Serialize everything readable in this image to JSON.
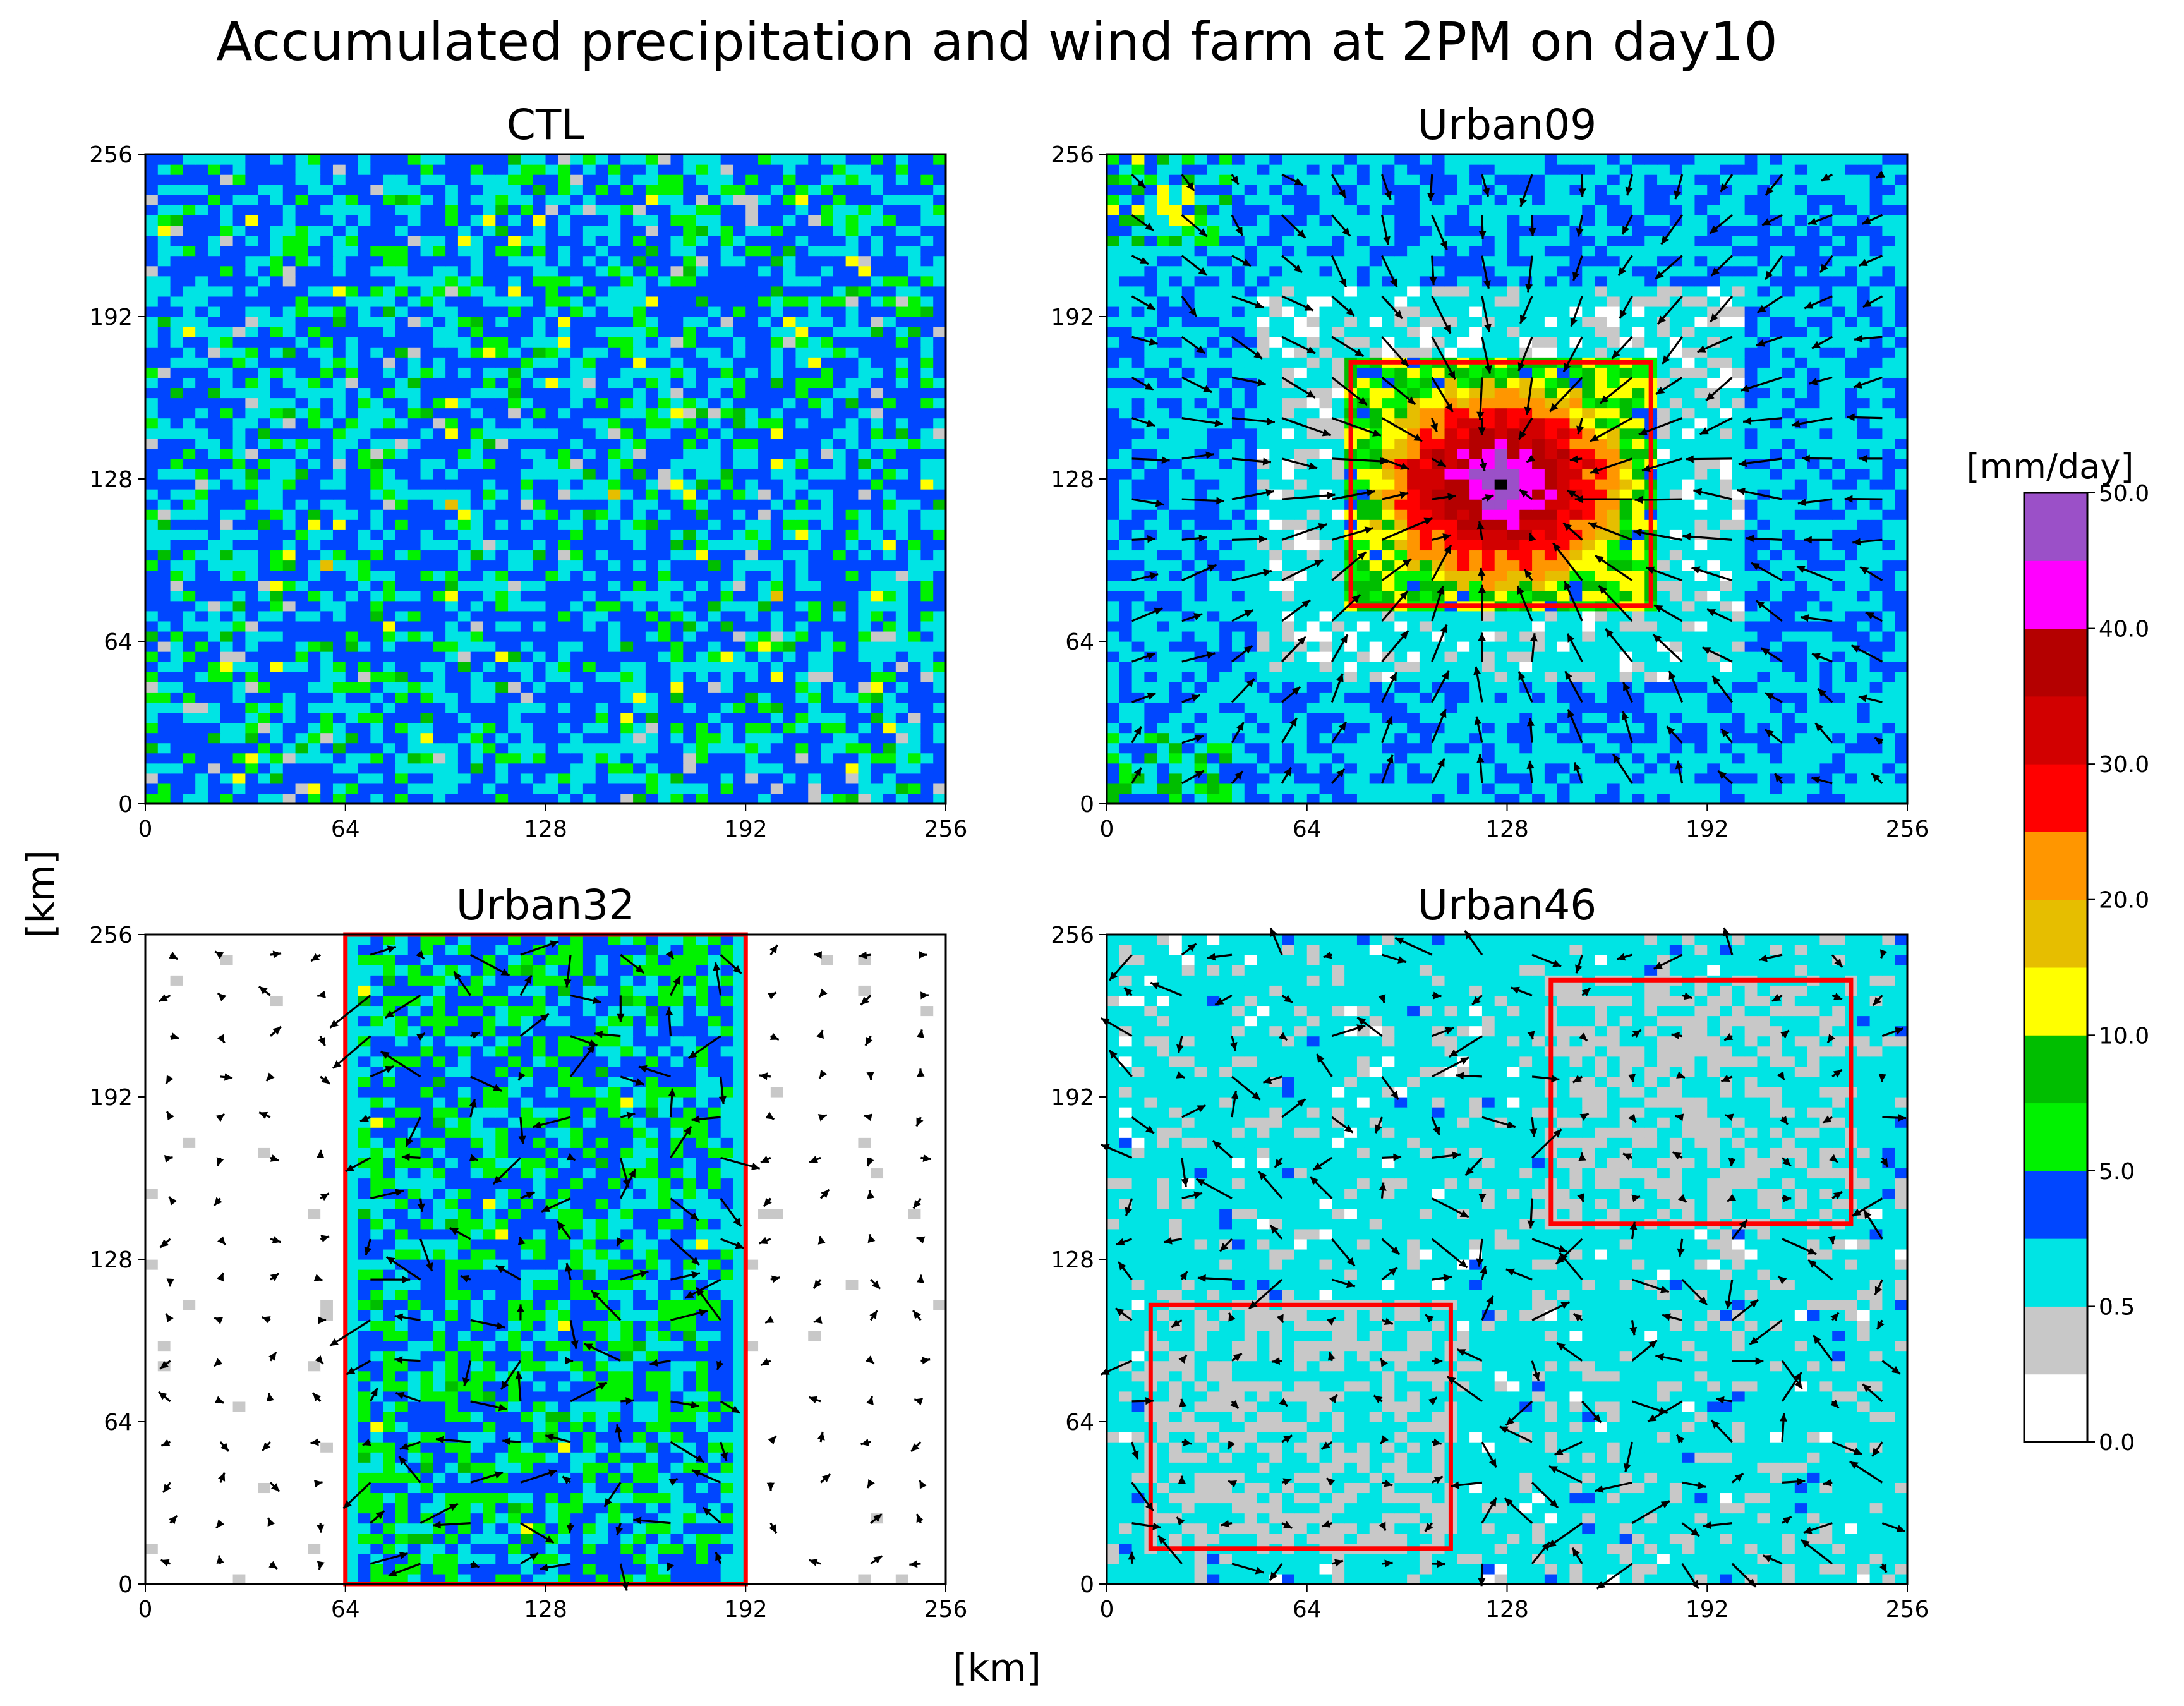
{
  "title": "Accumulated precipitation and wind farm at 2PM on day10",
  "axis_label": "[km]",
  "colorbar": {
    "unit": "[mm/day]",
    "levels": [
      0,
      0.25,
      0.5,
      2.5,
      5,
      7.5,
      10,
      12.5,
      15,
      20,
      25,
      30,
      35,
      40,
      45,
      50
    ],
    "colors": [
      "#ffffff",
      "#c8c8c8",
      "#00e4e4",
      "#0046ff",
      "#00f200",
      "#00be00",
      "#ffff00",
      "#e6be00",
      "#ff9600",
      "#ff0000",
      "#d20000",
      "#b40000",
      "#ff00ff",
      "#9b50c8"
    ],
    "tick_labels": [
      "0.0",
      "0.5",
      "5.0",
      "10.0",
      "20.0",
      "30.0",
      "40.0",
      "50.0"
    ]
  },
  "chart_data": [
    {
      "type": "heatmap",
      "title": "CTL",
      "xlim": [
        0,
        256
      ],
      "ylim": [
        0,
        256
      ],
      "xticks": [
        "0",
        "64",
        "128",
        "192",
        "256"
      ],
      "yticks": [
        "0",
        "64",
        "128",
        "192",
        "256"
      ],
      "urban_regions": [],
      "wind_vectors": false
    },
    {
      "type": "heatmap",
      "title": "Urban09",
      "xlim": [
        0,
        256
      ],
      "ylim": [
        0,
        256
      ],
      "xticks": [
        "0",
        "64",
        "128",
        "192",
        "256"
      ],
      "yticks": [
        "0",
        "64",
        "128",
        "192",
        "256"
      ],
      "urban_regions": [
        {
          "x0": 78,
          "x1": 174,
          "y0": 78,
          "y1": 174
        }
      ],
      "wind_vectors": true
    },
    {
      "type": "heatmap",
      "title": "Urban32",
      "xlim": [
        0,
        256
      ],
      "ylim": [
        0,
        256
      ],
      "xticks": [
        "0",
        "64",
        "128",
        "192",
        "256"
      ],
      "yticks": [
        "0",
        "64",
        "128",
        "192",
        "256"
      ],
      "urban_regions": [
        {
          "x0": 64,
          "x1": 192,
          "y0": 0,
          "y1": 256
        }
      ],
      "wind_vectors": true
    },
    {
      "type": "heatmap",
      "title": "Urban46",
      "xlim": [
        0,
        256
      ],
      "ylim": [
        0,
        256
      ],
      "xticks": [
        "0",
        "64",
        "128",
        "192",
        "256"
      ],
      "yticks": [
        "0",
        "64",
        "128",
        "192",
        "256"
      ],
      "urban_regions": [
        {
          "x0": 14,
          "x1": 110,
          "y0": 14,
          "y1": 110
        },
        {
          "x0": 142,
          "x1": 238,
          "y0": 142,
          "y1": 238
        }
      ],
      "wind_vectors": true
    }
  ]
}
